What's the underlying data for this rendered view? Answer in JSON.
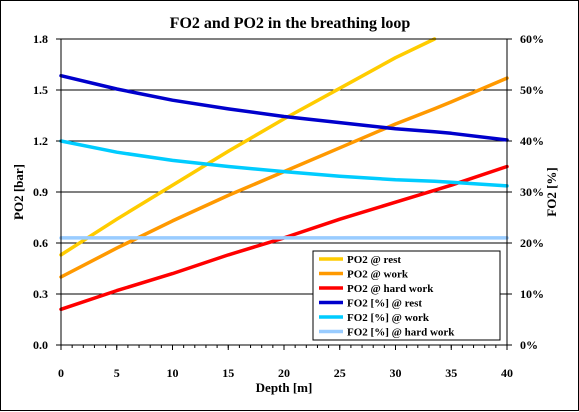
{
  "chart_data": {
    "type": "line",
    "title": "FO2 and PO2 in the breathing loop",
    "xlabel": "Depth [m]",
    "ylabel": "PO2 [bar]",
    "y2label": "FO2 [%]",
    "xlim": [
      0,
      40
    ],
    "ylim": [
      0,
      1.8
    ],
    "y2lim": [
      0,
      60
    ],
    "x_ticks": [
      "0",
      "5",
      "10",
      "15",
      "20",
      "25",
      "30",
      "35",
      "40"
    ],
    "y_ticks": [
      "0.0",
      "0.3",
      "0.6",
      "0.9",
      "1.2",
      "1.5",
      "1.8"
    ],
    "y2_ticks": [
      "0%",
      "10%",
      "20%",
      "30%",
      "40%",
      "50%",
      "60%"
    ],
    "grid": "horizontal",
    "legend_position": "bottom-right",
    "x": [
      0,
      5,
      10,
      15,
      20,
      25,
      30,
      33.5,
      35,
      40
    ],
    "series": [
      {
        "name": "PO2 @ rest",
        "axis": "left",
        "color": "#FFCC00",
        "values": [
          0.53,
          0.74,
          0.94,
          1.14,
          1.33,
          1.51,
          1.69,
          1.8,
          null,
          null
        ]
      },
      {
        "name": "PO2 @ work",
        "axis": "left",
        "color": "#FF9900",
        "values": [
          0.4,
          0.57,
          0.73,
          0.88,
          1.02,
          1.16,
          1.3,
          1.39,
          1.43,
          1.57
        ]
      },
      {
        "name": "PO2 @ hard work",
        "axis": "left",
        "color": "#FF0000",
        "values": [
          0.21,
          0.32,
          0.42,
          0.53,
          0.63,
          0.74,
          0.84,
          0.91,
          0.94,
          1.05
        ]
      },
      {
        "name": "FO2 [%] @ rest",
        "axis": "right",
        "color": "#0000CC",
        "values": [
          52.8,
          50.2,
          48.0,
          46.3,
          44.8,
          43.6,
          42.4,
          41.8,
          41.5,
          40.2
        ]
      },
      {
        "name": "FO2 [%] @ work",
        "axis": "right",
        "color": "#00CCFF",
        "values": [
          40.0,
          37.8,
          36.2,
          35.0,
          34.0,
          33.1,
          32.4,
          32.1,
          31.9,
          31.2
        ]
      },
      {
        "name": "FO2 [%] @ hard work",
        "axis": "right",
        "color": "#99CCFF",
        "values": [
          21.0,
          21.0,
          21.0,
          21.0,
          21.0,
          21.0,
          21.0,
          21.0,
          21.0,
          21.0
        ]
      }
    ]
  }
}
